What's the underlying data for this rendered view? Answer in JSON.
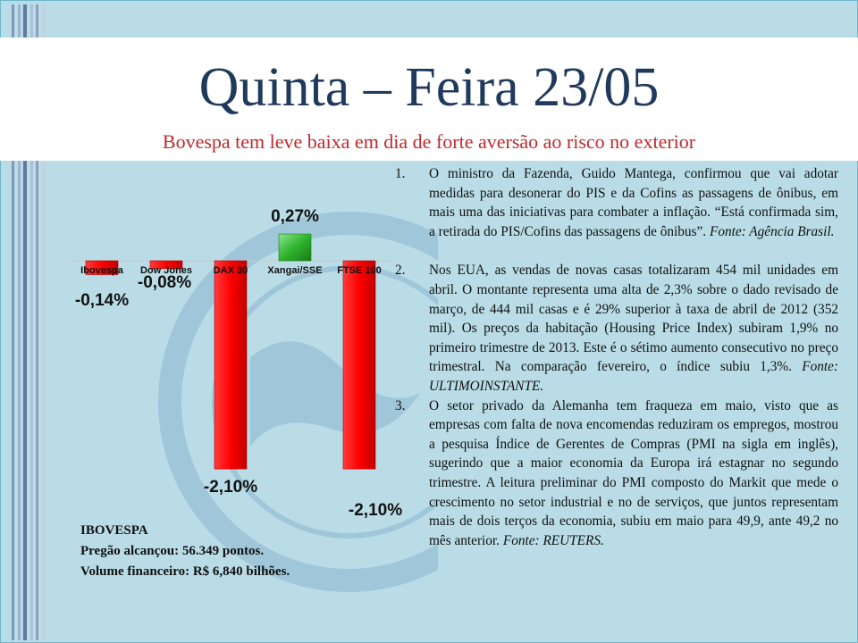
{
  "slide": {
    "title": "Quinta – Feira 23/05",
    "subtitle": "Bovespa tem leve baixa em dia de forte aversão ao risco no exterior",
    "colors": {
      "title": "#1f3a5c",
      "subtitle": "#c0282d",
      "background": "#b9dce6",
      "negative": "#ff0000",
      "positive": "#2db52d"
    }
  },
  "chart_data": {
    "type": "bar",
    "categories": [
      "Ibovespa",
      "Dow Jones",
      "DAX 30",
      "Xangai/SSE",
      "FTSE 100"
    ],
    "values": [
      -0.14,
      -0.08,
      -2.1,
      0.27,
      -2.1
    ],
    "data_labels": [
      "-0,14%",
      "-0,08%",
      "-2,10%",
      "0,27%",
      "-2,10%"
    ],
    "title": "",
    "xlabel": "",
    "ylabel": "",
    "ylim": [
      -2.1,
      0.27
    ],
    "grid": false,
    "legend": "none"
  },
  "ibovespa": {
    "heading": "IBOVESPA",
    "line1": "Pregão alcançou: 56.349 pontos.",
    "line2": "Volume financeiro: R$ 6,840 bilhões."
  },
  "news": [
    {
      "number": "1.",
      "text": "O ministro da Fazenda, Guido Mantega, confirmou que vai adotar medidas para desonerar do PIS e da Cofins as passagens de ônibus, em mais uma das iniciativas para combater a inflação. “Está confirmada sim, a retirada do PIS/Cofins das passagens de ônibus”.",
      "source": "Fonte: Agência Brasil."
    },
    {
      "number": "2.",
      "text": "Nos EUA, as vendas de novas casas totalizaram 454 mil unidades em abril. O montante representa uma alta de 2,3% sobre o dado revisado de março, de 444 mil casas e é 29% superior à taxa de abril de 2012 (352 mil). Os preços da habitação (Housing Price Index) subiram 1,9% no primeiro trimestre de 2013. Este é o sétimo aumento consecutivo no preço trimestral. Na comparação fevereiro, o índice subiu 1,3%.",
      "source": "Fonte: ULTIMOINSTANTE."
    },
    {
      "number": "3.",
      "text": "O setor privado da Alemanha tem fraqueza em maio, visto que as empresas com falta de nova encomendas reduziram os empregos, mostrou a pesquisa Índice de Gerentes de Compras (PMI na sigla em inglês), sugerindo que a maior economia da Europa irá estagnar no segundo trimestre. A leitura preliminar do PMI composto do Markit que mede o crescimento no setor industrial e no de serviços, que juntos representam mais de dois terços da economia, subiu em maio para 49,9, ante 49,2 no mês anterior.",
      "source": "Fonte: REUTERS."
    }
  ]
}
